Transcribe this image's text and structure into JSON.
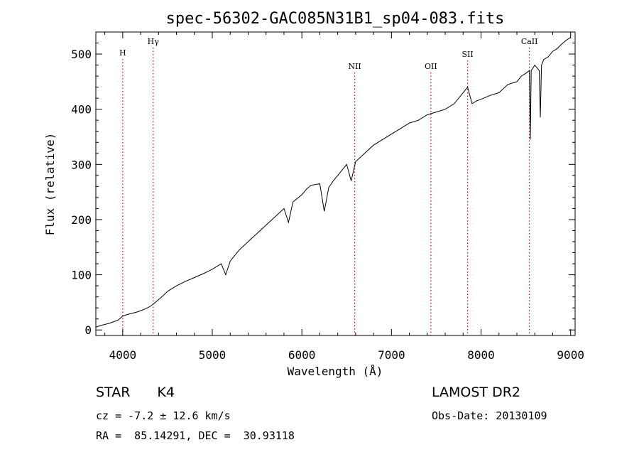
{
  "chart_data": {
    "type": "line",
    "title": "spec-56302-GAC085N31B1_sp04-083.fits",
    "xlabel": "Wavelength (Å)",
    "ylabel": "Flux (relative)",
    "xlim": [
      3700,
      9050
    ],
    "ylim": [
      -10,
      540
    ],
    "x_ticks": [
      4000,
      5000,
      6000,
      7000,
      8000,
      9000
    ],
    "y_ticks": [
      0,
      100,
      200,
      300,
      400,
      500
    ],
    "grid": false,
    "legend": "none",
    "line_color": "#000000",
    "marker_color": "#cc0000",
    "series": [
      {
        "x": [
          3700,
          3750,
          3800,
          3850,
          3900,
          3950,
          4000,
          4050,
          4100,
          4150,
          4200,
          4250,
          4300,
          4350,
          4400,
          4450,
          4500,
          4600,
          4700,
          4800,
          4900,
          5000,
          5100,
          5150,
          5200,
          5300,
          5400,
          5500,
          5600,
          5700,
          5800,
          5850,
          5900,
          6000,
          6050,
          6100,
          6200,
          6250,
          6300,
          6350,
          6400,
          6450,
          6500,
          6550,
          6600,
          6700,
          6800,
          6900,
          7000,
          7100,
          7200,
          7300,
          7400,
          7500,
          7600,
          7700,
          7750,
          7800,
          7850,
          7900,
          7950,
          8000,
          8100,
          8200,
          8300,
          8400,
          8450,
          8500,
          8540,
          8550,
          8560,
          8600,
          8650,
          8662,
          8675,
          8700,
          8750,
          8800,
          8850,
          8900,
          8950,
          9000
        ],
        "y": [
          5,
          8,
          10,
          12,
          15,
          18,
          25,
          28,
          30,
          32,
          35,
          38,
          42,
          48,
          55,
          62,
          70,
          80,
          88,
          95,
          102,
          110,
          120,
          100,
          125,
          145,
          160,
          175,
          190,
          205,
          220,
          195,
          232,
          245,
          255,
          262,
          265,
          215,
          258,
          270,
          280,
          290,
          300,
          270,
          305,
          320,
          335,
          345,
          355,
          365,
          375,
          380,
          390,
          395,
          400,
          410,
          420,
          430,
          440,
          410,
          415,
          418,
          425,
          430,
          445,
          450,
          460,
          465,
          470,
          345,
          470,
          480,
          470,
          385,
          480,
          490,
          495,
          505,
          510,
          518,
          525,
          530
        ]
      }
    ],
    "line_markers": [
      {
        "x": 4000,
        "label": "H"
      },
      {
        "x": 4340,
        "label": "Hγ"
      },
      {
        "x": 6590,
        "label": "NII"
      },
      {
        "x": 7440,
        "label": "OII"
      },
      {
        "x": 7850,
        "label": "SII"
      },
      {
        "x": 8540,
        "label": "CaII"
      }
    ]
  },
  "info": {
    "object_type": "STAR",
    "subclass": "K4",
    "survey": "LAMOST DR2",
    "cz": "cz = -7.2 ± 12.6 km/s",
    "obs_date": "Obs-Date: 20130109",
    "coords": "RA =  85.14291, DEC =  30.93118"
  }
}
